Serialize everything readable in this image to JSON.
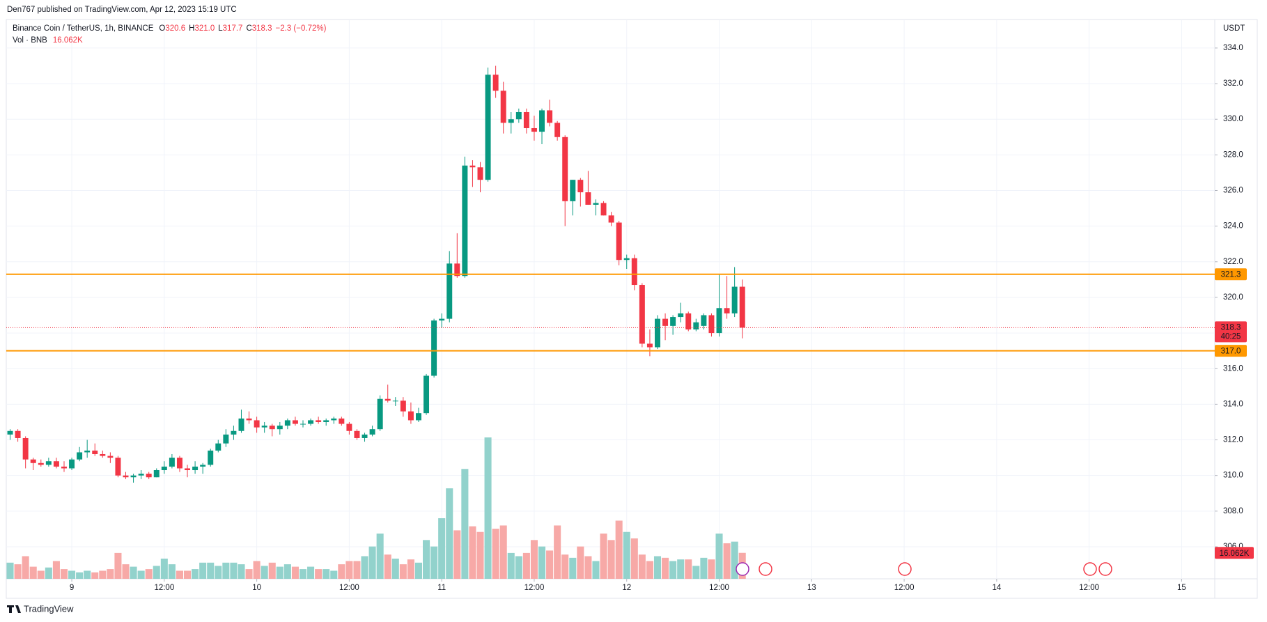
{
  "page": {
    "header": "Den767 published on TradingView.com, Apr 12, 2023 15:19 UTC",
    "footer": "TradingView"
  },
  "chart_data": {
    "type": "candlestick",
    "legend": {
      "symbol": "Binance Coin / TetherUS, 1h, BINANCE",
      "items": [
        {
          "label": "O",
          "value": "320.6"
        },
        {
          "label": "H",
          "value": "321.0"
        },
        {
          "label": "L",
          "value": "317.7"
        },
        {
          "label": "C",
          "value": "318.3"
        }
      ],
      "change": "−2.3 (−0.72%)"
    },
    "currency": "USDT",
    "countdown": "40:25",
    "up_color": "#089981",
    "down_color": "#f23645",
    "grid": true,
    "x": [
      0,
      1,
      2,
      3,
      4,
      5,
      6,
      7,
      8,
      9,
      10,
      11,
      12,
      13,
      14,
      15,
      16,
      17,
      18,
      19,
      20,
      21,
      22,
      23,
      24,
      25,
      26,
      27,
      28,
      29,
      30,
      31,
      32,
      33,
      34,
      35,
      36,
      37,
      38,
      39,
      40,
      41,
      42,
      43,
      44,
      45,
      46,
      47,
      48,
      49,
      50,
      51,
      52,
      53,
      54,
      55,
      56,
      57,
      58,
      59,
      60,
      61,
      62,
      63,
      64,
      65,
      66,
      67,
      68,
      69,
      70,
      71,
      72,
      73,
      74,
      75,
      76,
      77,
      78,
      79,
      80,
      81,
      82,
      83,
      84,
      85,
      86,
      87,
      88,
      89,
      90,
      91,
      92,
      93,
      94,
      95
    ],
    "open": [
      312.3,
      312.5,
      312.1,
      310.9,
      310.7,
      310.6,
      310.8,
      310.5,
      310.4,
      310.9,
      311.3,
      311.4,
      311.2,
      311.1,
      311.0,
      310.0,
      309.9,
      310.0,
      310.1,
      309.9,
      310.3,
      310.5,
      311.0,
      310.4,
      310.3,
      310.5,
      310.6,
      311.4,
      311.8,
      312.3,
      312.5,
      313.2,
      313.1,
      312.7,
      312.8,
      312.6,
      312.8,
      313.1,
      312.9,
      312.9,
      313.1,
      313.0,
      313.1,
      313.2,
      312.9,
      312.5,
      312.1,
      312.3,
      312.6,
      314.3,
      314.2,
      314.2,
      313.6,
      313.1,
      313.5,
      315.6,
      318.7,
      318.8,
      321.9,
      321.2,
      327.4,
      327.3,
      326.6,
      332.5,
      331.6,
      329.8,
      330.0,
      330.4,
      329.5,
      329.3,
      330.5,
      329.8,
      329.0,
      325.4,
      326.6,
      325.9,
      325.2,
      325.3,
      324.6,
      324.2,
      322.1,
      322.2,
      320.7,
      317.4,
      317.2,
      318.8,
      318.4,
      318.9,
      319.1,
      318.2,
      318.4,
      319.0,
      318.0,
      319.4,
      319.1,
      320.6
    ],
    "high": [
      312.6,
      312.6,
      312.2,
      311.0,
      310.9,
      311.0,
      311.0,
      310.8,
      311.0,
      311.6,
      312.0,
      311.8,
      311.4,
      311.3,
      311.1,
      310.2,
      310.1,
      310.3,
      310.2,
      310.4,
      310.8,
      311.2,
      311.1,
      310.6,
      310.8,
      310.7,
      311.5,
      312.0,
      312.6,
      312.8,
      313.7,
      313.6,
      313.3,
      313.0,
      312.9,
      313.0,
      313.2,
      313.3,
      313.1,
      313.2,
      313.3,
      313.2,
      313.3,
      313.3,
      313.0,
      312.6,
      312.4,
      312.8,
      314.5,
      315.1,
      314.4,
      314.4,
      314.1,
      313.8,
      315.7,
      318.8,
      319.1,
      322.6,
      323.6,
      327.9,
      327.7,
      327.6,
      332.9,
      333.0,
      332.1,
      330.4,
      330.6,
      330.6,
      330.2,
      330.6,
      331.1,
      329.9,
      329.1,
      326.6,
      326.7,
      327.1,
      325.5,
      325.4,
      324.8,
      324.3,
      322.4,
      322.4,
      320.8,
      318.2,
      319.0,
      319.1,
      319.0,
      319.7,
      319.2,
      318.8,
      319.1,
      319.1,
      321.3,
      321.2,
      321.7,
      321.0
    ],
    "low": [
      312.0,
      311.9,
      310.4,
      310.3,
      310.5,
      310.5,
      310.4,
      310.2,
      310.3,
      310.8,
      311.0,
      311.1,
      311.0,
      310.7,
      309.9,
      309.8,
      309.6,
      309.8,
      309.8,
      309.9,
      310.1,
      310.4,
      310.2,
      309.9,
      310.1,
      310.1,
      310.5,
      311.3,
      311.6,
      312.0,
      312.4,
      312.9,
      312.4,
      312.4,
      312.2,
      312.3,
      312.6,
      312.8,
      312.7,
      312.8,
      312.9,
      312.8,
      312.9,
      312.8,
      312.3,
      312.0,
      311.9,
      312.2,
      312.5,
      314.1,
      313.9,
      313.3,
      312.9,
      313.0,
      313.4,
      315.5,
      318.3,
      318.6,
      321.1,
      321.1,
      326.2,
      325.9,
      326.5,
      331.2,
      329.2,
      329.2,
      329.8,
      329.2,
      328.8,
      328.6,
      329.6,
      328.8,
      324.0,
      324.6,
      325.1,
      325.2,
      324.6,
      324.6,
      324.0,
      321.8,
      321.6,
      320.4,
      317.2,
      316.7,
      317.1,
      317.6,
      317.9,
      318.6,
      318.1,
      318.1,
      318.2,
      317.8,
      317.8,
      318.8,
      318.9,
      317.7
    ],
    "close": [
      312.5,
      312.1,
      310.9,
      310.7,
      310.6,
      310.8,
      310.5,
      310.4,
      310.9,
      311.3,
      311.4,
      311.2,
      311.1,
      311.0,
      310.0,
      309.9,
      310.0,
      310.1,
      309.9,
      310.3,
      310.5,
      311.0,
      310.4,
      310.3,
      310.5,
      310.6,
      311.4,
      311.8,
      312.3,
      312.5,
      313.2,
      313.1,
      312.7,
      312.8,
      312.6,
      312.8,
      313.1,
      312.9,
      312.9,
      313.1,
      313.0,
      313.1,
      313.2,
      312.9,
      312.5,
      312.1,
      312.3,
      312.6,
      314.3,
      314.2,
      314.2,
      313.6,
      313.1,
      313.5,
      315.6,
      318.7,
      318.8,
      321.9,
      321.2,
      327.4,
      327.3,
      326.6,
      332.5,
      331.6,
      329.8,
      330.0,
      330.4,
      329.5,
      329.3,
      330.5,
      329.8,
      329.0,
      325.4,
      326.6,
      325.9,
      325.2,
      325.3,
      324.6,
      324.2,
      322.1,
      322.2,
      320.7,
      317.4,
      317.2,
      318.8,
      318.4,
      318.9,
      319.1,
      318.2,
      318.6,
      319.0,
      318.0,
      319.4,
      319.1,
      320.6,
      318.3
    ],
    "volume": {
      "name": "Vol · BNB",
      "label": "16.062K",
      "up_color": "#92d2cc",
      "down_color": "#f7a9a7",
      "values": [
        10000,
        9000,
        14000,
        7500,
        5000,
        7000,
        11000,
        6000,
        5000,
        4000,
        5000,
        4000,
        5000,
        6000,
        16000,
        9000,
        7500,
        5000,
        6000,
        8000,
        12500,
        9000,
        5000,
        5000,
        6000,
        10000,
        10000,
        8000,
        10000,
        10000,
        9000,
        6000,
        11000,
        8000,
        10000,
        7500,
        9000,
        7500,
        6000,
        7500,
        6000,
        6000,
        5000,
        9000,
        11000,
        11000,
        14000,
        20000,
        28000,
        15000,
        12500,
        9000,
        12000,
        10000,
        24000,
        20000,
        37500,
        56000,
        30000,
        68000,
        32500,
        29000,
        87500,
        31000,
        33000,
        16000,
        14000,
        16000,
        24000,
        20000,
        17500,
        33000,
        15000,
        13000,
        20000,
        14000,
        11000,
        28000,
        24000,
        36000,
        29000,
        25000,
        15000,
        11000,
        14000,
        13000,
        11000,
        12000,
        12000,
        8000,
        13000,
        12000,
        28000,
        22000,
        23000,
        16062
      ]
    },
    "levels": [
      {
        "value": 321.3,
        "label": "321.3",
        "color": "#ff9800"
      },
      {
        "value": 317,
        "label": "317.0",
        "color": "#ff9800"
      }
    ],
    "xlim": [
      -0.5,
      156.3
    ],
    "xticks": [
      {
        "value": 8,
        "label": "9"
      },
      {
        "value": 20,
        "label": "12:00"
      },
      {
        "value": 32,
        "label": "10"
      },
      {
        "value": 44,
        "label": "12:00"
      },
      {
        "value": 56,
        "label": "11"
      },
      {
        "value": 68,
        "label": "12:00"
      },
      {
        "value": 80,
        "label": "12"
      },
      {
        "value": 92,
        "label": "12:00"
      },
      {
        "value": 104,
        "label": "13"
      },
      {
        "value": 116,
        "label": "12:00"
      },
      {
        "value": 128,
        "label": "14"
      },
      {
        "value": 140,
        "label": "12:00"
      },
      {
        "value": 152,
        "label": "15"
      }
    ],
    "ylim": [
      304.2,
      335.6
    ],
    "yticks": [
      {
        "value": 306,
        "label": "306.0"
      },
      {
        "value": 308,
        "label": "308.0"
      },
      {
        "value": 310,
        "label": "310.0"
      },
      {
        "value": 312,
        "label": "312.0"
      },
      {
        "value": 314,
        "label": "314.0"
      },
      {
        "value": 316,
        "label": "316.0"
      },
      {
        "value": 318,
        "label": "318.0"
      },
      {
        "value": 320,
        "label": "320.0"
      },
      {
        "value": 322,
        "label": "322.0"
      },
      {
        "value": 324,
        "label": "324.0"
      },
      {
        "value": 326,
        "label": "326.0"
      },
      {
        "value": 328,
        "label": "328.0"
      },
      {
        "value": 330,
        "label": "330.0"
      },
      {
        "value": 332,
        "label": "332.0"
      },
      {
        "value": 334,
        "label": "334.0"
      }
    ]
  }
}
